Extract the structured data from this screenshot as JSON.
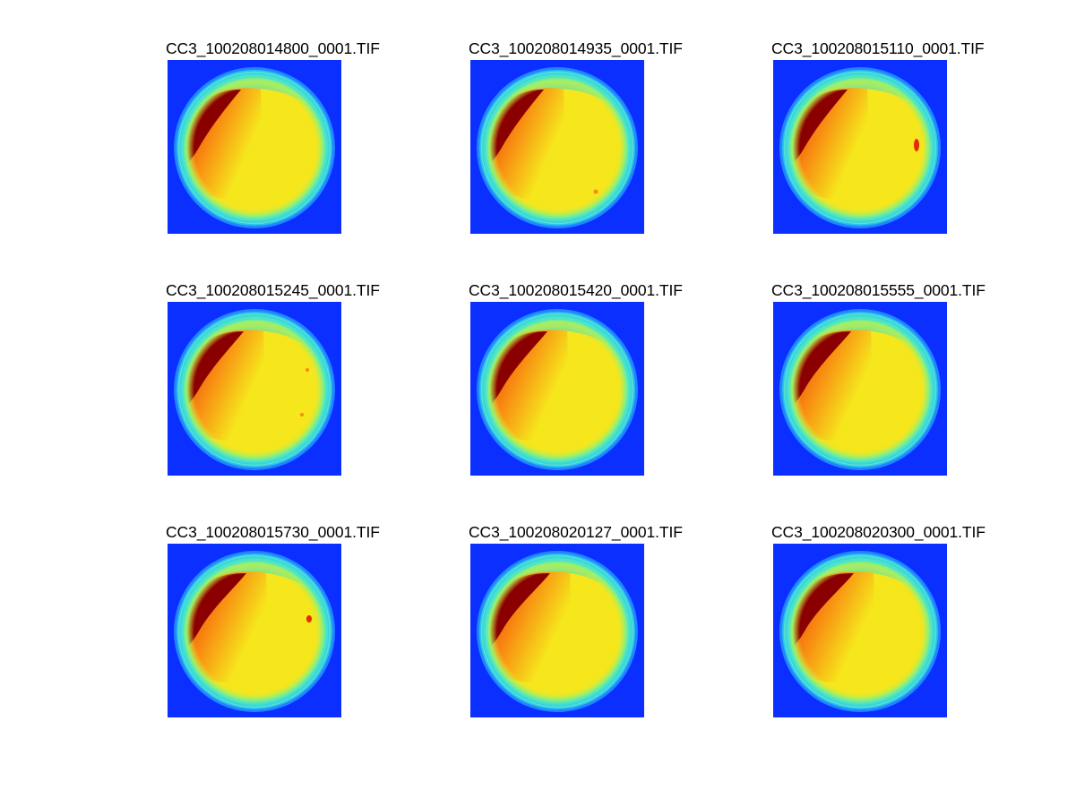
{
  "figure": {
    "background": "#ffffff",
    "colormap": "jet",
    "colors": {
      "background_blue": "#0b2fff",
      "rim_cyan": "#3fe2d6",
      "mid_yellow": "#f6e61c",
      "orange": "#f88a12",
      "red": "#e42a06",
      "dark_red": "#8a0000"
    },
    "panels": [
      {
        "title": "CC3_100208014800_0001.TIF"
      },
      {
        "title": "CC3_100208014935_0001.TIF"
      },
      {
        "title": "CC3_100208015110_0001.TIF"
      },
      {
        "title": "CC3_100208015245_0001.TIF"
      },
      {
        "title": "CC3_100208015420_0001.TIF"
      },
      {
        "title": "CC3_100208015555_0001.TIF"
      },
      {
        "title": "CC3_100208015730_0001.TIF"
      },
      {
        "title": "CC3_100208020127_0001.TIF"
      },
      {
        "title": "CC3_100208020300_0001.TIF"
      }
    ]
  }
}
